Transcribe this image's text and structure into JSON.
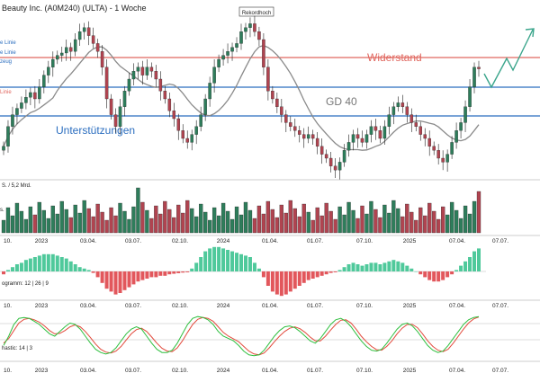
{
  "title": "Beauty Inc. (A0M240) (ULTA) - 1 Woche",
  "colors": {
    "up": "#2e7d5b",
    "down": "#b04450",
    "support": "#2a6dbf",
    "resistance": "#e0675f",
    "ma": "#8a8a8a",
    "arrow": "#3aa58b",
    "hist_pos": "#4fc99b",
    "hist_neg": "#e2575c",
    "stoch_k": "#2fbf3f",
    "stoch_d": "#e24a3c"
  },
  "annotations": {
    "rekordhoch": "Rekordhoch",
    "widerstand": "Widerstand",
    "unterstuetzungen": "Unterstützungen",
    "gd40": "GD 40",
    "left_label_1": "e Linie",
    "left_label_2": "e Linie",
    "left_label_3": "zeug",
    "left_label_red": "Linie"
  },
  "volume_label": "S. / 5,2 Mrd.",
  "macd_label": "ogramm: 12 | 26 | 9",
  "stoch_label": "hastic: 14 | 3",
  "time_axis": [
    "10.",
    "2023",
    "03.04.",
    "03.07.",
    "02.10.",
    "2024",
    "01.04.",
    "01.07.",
    "07.10.",
    "2025",
    "07.04.",
    "07.07."
  ],
  "chart_data": {
    "type": "candlestick",
    "title": "Beauty Inc. (A0M240) (ULTA) - 1 Woche",
    "interval": "1 Woche",
    "y_axis_labels": "none visible",
    "levels": {
      "resistance_label": "Widerstand",
      "support_label": "Unterstützungen",
      "moving_average_label": "GD 40",
      "record_high_label": "Rekordhoch"
    },
    "candles_close_approx": [
      370,
      395,
      410,
      418,
      425,
      432,
      438,
      430,
      445,
      460,
      470,
      480,
      485,
      488,
      495,
      490,
      505,
      515,
      520,
      510,
      500,
      490,
      470,
      430,
      410,
      395,
      420,
      440,
      455,
      465,
      470,
      460,
      470,
      465,
      455,
      440,
      430,
      415,
      405,
      390,
      380,
      375,
      385,
      395,
      410,
      430,
      450,
      470,
      480,
      485,
      490,
      495,
      500,
      515,
      520,
      525,
      515,
      505,
      470,
      440,
      430,
      420,
      410,
      400,
      395,
      390,
      385,
      380,
      385,
      380,
      370,
      360,
      355,
      345,
      340,
      350,
      365,
      375,
      385,
      380,
      375,
      385,
      395,
      390,
      380,
      395,
      410,
      420,
      425,
      420,
      410,
      400,
      395,
      385,
      380,
      370,
      365,
      355,
      350,
      360,
      375,
      390,
      400,
      420,
      445,
      470,
      468
    ],
    "macd_histogram_approx": [
      -1,
      0.5,
      1.5,
      2.5,
      3,
      4,
      4.5,
      5,
      5.5,
      6,
      6,
      6,
      5.5,
      5,
      4.5,
      3.5,
      2.5,
      1.5,
      1,
      0.5,
      -0.5,
      -2,
      -4,
      -6,
      -7,
      -8,
      -7.5,
      -6.5,
      -5.5,
      -4.5,
      -3.5,
      -3,
      -2.5,
      -2,
      -2,
      -1.5,
      -1.5,
      -1,
      -0.8,
      -0.6,
      -0.4,
      -0.3,
      1,
      3,
      5,
      7,
      8,
      8.5,
      8.5,
      8,
      7.5,
      7,
      6.5,
      6,
      5.5,
      5,
      3,
      1,
      -2,
      -5,
      -7,
      -8,
      -8.5,
      -8,
      -7,
      -6,
      -5,
      -4,
      -3,
      -2.5,
      -2,
      -1.5,
      -1,
      -0.5,
      -0.3,
      0.5,
      1.5,
      2.5,
      3,
      2.5,
      2,
      2.5,
      3,
      3,
      2.5,
      3,
      3.5,
      4,
      3.5,
      3,
      2,
      1,
      0,
      -1,
      -2,
      -3,
      -3.5,
      -3.5,
      -3,
      -2,
      -1,
      0.5,
      2,
      3.5,
      5,
      7,
      8
    ],
    "stochastic_k_approx": [
      30,
      50,
      75,
      88,
      90,
      88,
      82,
      75,
      65,
      55,
      50,
      60,
      70,
      78,
      75,
      65,
      50,
      35,
      22,
      15,
      12,
      15,
      25,
      40,
      55,
      65,
      70,
      65,
      50,
      35,
      22,
      15,
      15,
      20,
      35,
      55,
      75,
      88,
      92,
      90,
      85,
      75,
      60,
      50,
      45,
      40,
      30,
      18,
      10,
      8,
      10,
      20,
      35,
      50,
      62,
      70,
      72,
      68,
      60,
      50,
      40,
      35,
      45,
      60,
      75,
      85,
      88,
      82,
      70,
      55,
      40,
      28,
      20,
      18,
      22,
      35,
      50,
      65,
      75,
      78,
      72,
      60,
      45,
      30,
      20,
      15,
      18,
      30,
      45,
      60,
      75,
      85,
      90,
      92
    ],
    "stochastic_d_approx": [
      35,
      45,
      62,
      78,
      86,
      88,
      85,
      80,
      72,
      62,
      55,
      56,
      62,
      70,
      74,
      70,
      60,
      47,
      33,
      22,
      16,
      14,
      18,
      28,
      42,
      55,
      64,
      67,
      60,
      48,
      35,
      24,
      18,
      17,
      25,
      40,
      58,
      75,
      86,
      90,
      88,
      82,
      70,
      58,
      50,
      44,
      38,
      28,
      18,
      12,
      10,
      14,
      25,
      38,
      50,
      60,
      67,
      70,
      66,
      58,
      48,
      40,
      40,
      50,
      63,
      75,
      84,
      85,
      78,
      65,
      50,
      38,
      28,
      21,
      20,
      28,
      40,
      55,
      67,
      75,
      75,
      68,
      55,
      40,
      28,
      20,
      17,
      22,
      35,
      50,
      65,
      78,
      87,
      91
    ]
  }
}
